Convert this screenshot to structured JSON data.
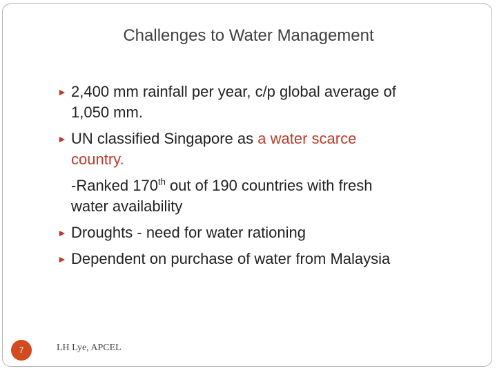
{
  "slide": {
    "title": "Challenges to Water Management",
    "bullets": [
      {
        "glyph": "",
        "lines": [
          "2,400 mm rainfall per year, c/p global average of",
          "1,050 mm."
        ]
      },
      {
        "glyph": "",
        "pre": "UN classified Singapore as ",
        "highlight": "a water scarce",
        "line2": "country."
      },
      {
        "sub_pre": "-Ranked 170",
        "sub_sup": "th",
        "sub_post": " out of 190 countries with fresh",
        "sub_line2": "water availability"
      },
      {
        "glyph": "",
        "text": "Droughts - need for water rationing"
      },
      {
        "glyph": "",
        "text": "Dependent on purchase of water from Malaysia"
      }
    ],
    "page_number": "7",
    "footer": "LH Lye, APCEL",
    "accent_color": "#c0392b",
    "bullet_icon": "right-arrow-bullet-icon"
  }
}
